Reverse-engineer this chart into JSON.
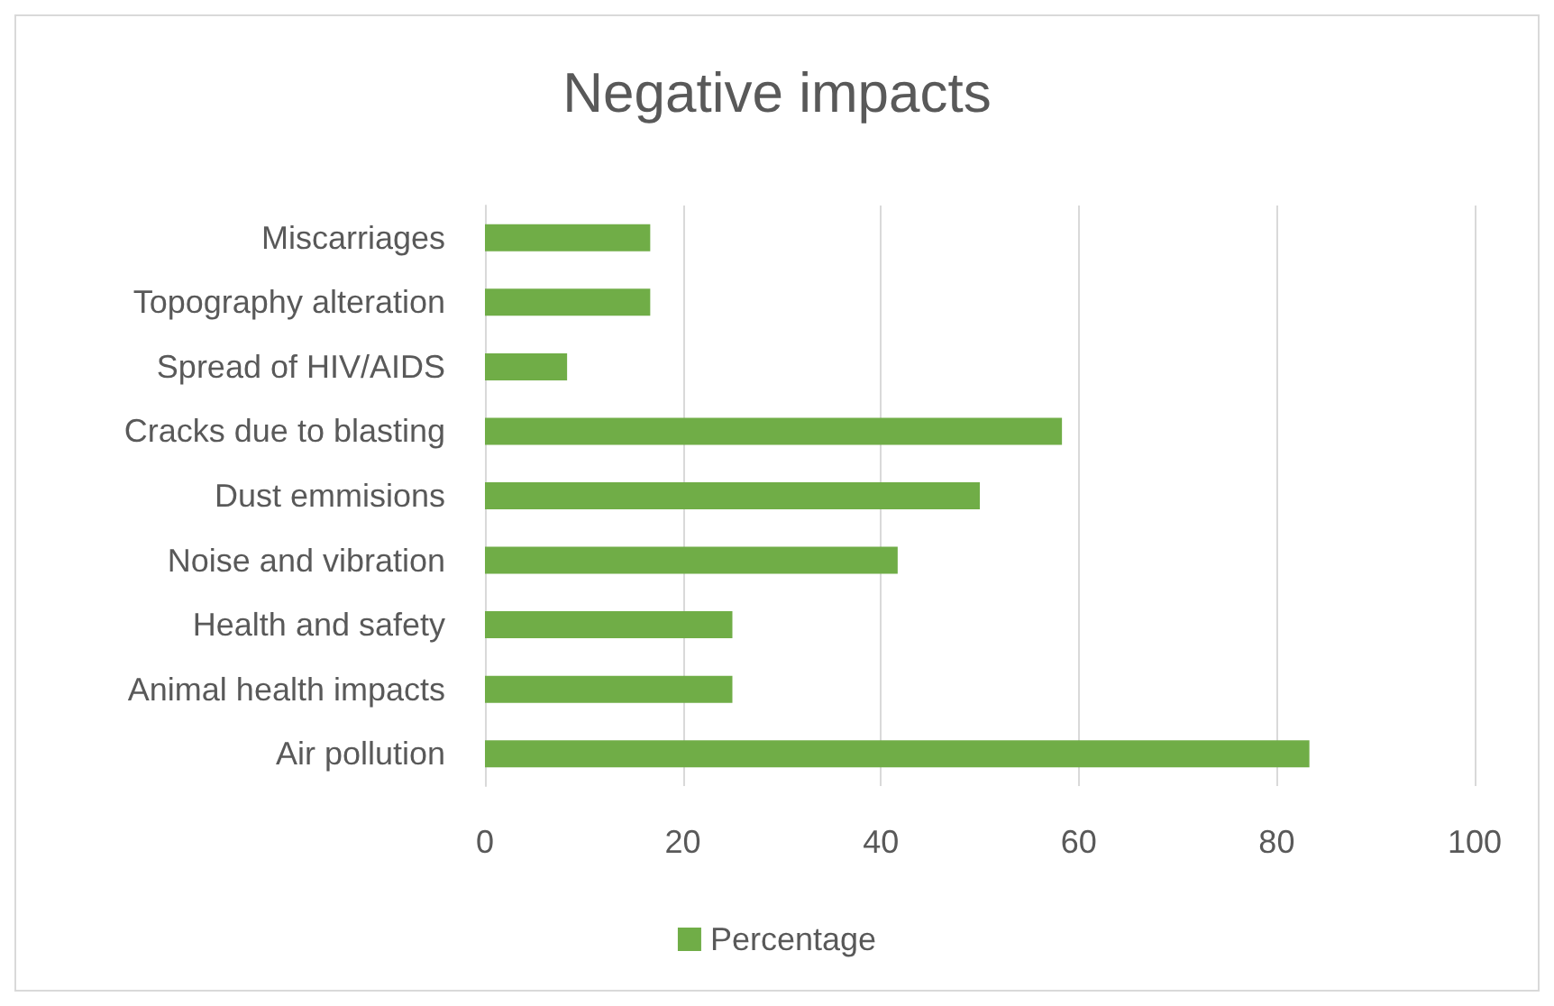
{
  "chart_data": {
    "type": "bar",
    "orientation": "horizontal",
    "title": "Negative impacts",
    "categories": [
      "Miscarriages",
      "Topography alteration",
      "Spread of HIV/AIDS",
      "Cracks due to blasting",
      "Dust emmisions",
      "Noise and vibration",
      "Health and safety",
      "Animal health impacts",
      "Air pollution"
    ],
    "series": [
      {
        "name": "Percentage",
        "color": "#70ad47",
        "values": [
          16.7,
          16.7,
          8.3,
          58.3,
          50,
          41.7,
          25,
          25,
          83.3
        ]
      }
    ],
    "xlim": [
      0,
      100
    ],
    "xticks": [
      0,
      20,
      40,
      60,
      80,
      100
    ],
    "grid": "x",
    "legend": "bottom"
  }
}
